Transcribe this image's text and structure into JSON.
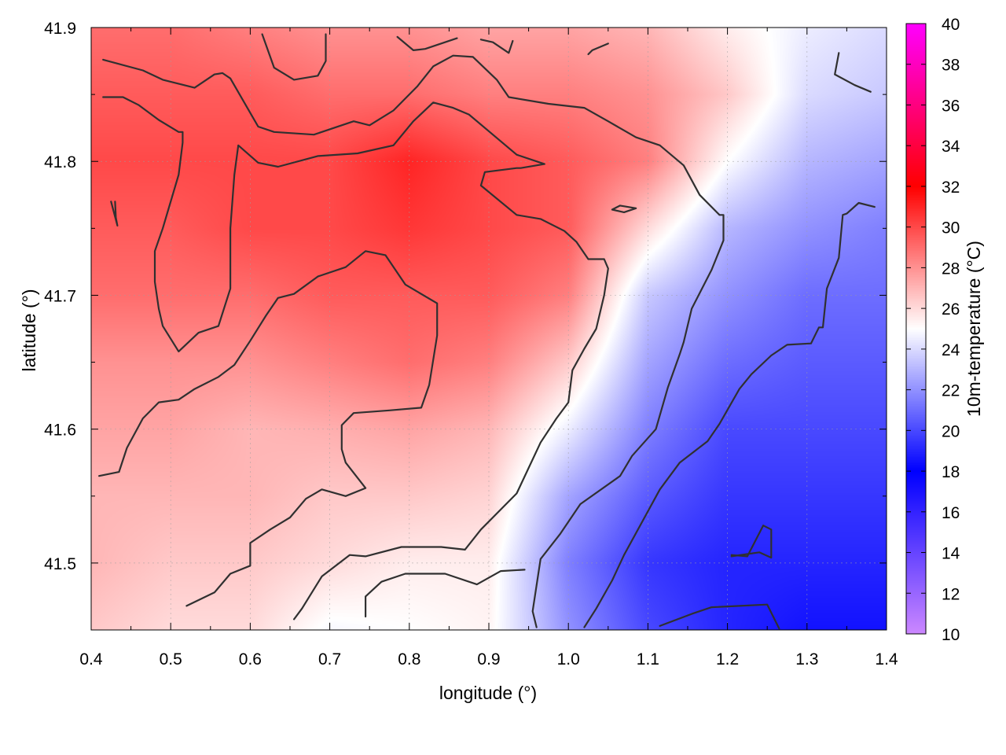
{
  "chart_data": {
    "type": "heatmap",
    "title": "",
    "xlabel": "longitude (°)",
    "ylabel": "latitude (°)",
    "colorbar_label": "10m-temperature (°C)",
    "xlim": [
      0.4,
      1.4
    ],
    "ylim": [
      41.45,
      41.9
    ],
    "xticks": [
      "0.4",
      "0.5",
      "0.6",
      "0.7",
      "0.8",
      "0.9",
      "1.0",
      "1.1",
      "1.2",
      "1.3",
      "1.4"
    ],
    "yticks": [
      "41.5",
      "41.6",
      "41.7",
      "41.8",
      "41.9"
    ],
    "colorbar_range": [
      10,
      40
    ],
    "colorbar_ticks": [
      "10",
      "12",
      "14",
      "16",
      "18",
      "20",
      "22",
      "24",
      "26",
      "28",
      "30",
      "32",
      "34",
      "36",
      "38",
      "40"
    ],
    "colormap_stops": [
      {
        "value": 10,
        "color": "#cc88ff"
      },
      {
        "value": 18,
        "color": "#0000ff"
      },
      {
        "value": 25,
        "color": "#ffffff"
      },
      {
        "value": 32,
        "color": "#ff0000"
      },
      {
        "value": 40,
        "color": "#ff00ff"
      }
    ],
    "grid": true,
    "colorbar_position": "right",
    "temperature_field": {
      "x": [
        0.4,
        0.5,
        0.6,
        0.7,
        0.8,
        0.9,
        1.0,
        1.1,
        1.2,
        1.3,
        1.4
      ],
      "y": [
        41.45,
        41.5,
        41.55,
        41.6,
        41.65,
        41.7,
        41.75,
        41.8,
        41.85,
        41.9
      ],
      "values": [
        [
          26.5,
          26.0,
          26.0,
          24.8,
          25.0,
          25.3,
          22.0,
          20.0,
          19.0,
          18.5,
          18.5
        ],
        [
          27.0,
          26.5,
          26.5,
          26.0,
          25.5,
          25.5,
          21.5,
          19.5,
          19.0,
          19.0,
          19.0
        ],
        [
          27.0,
          27.0,
          27.0,
          26.5,
          26.5,
          26.2,
          22.5,
          20.5,
          19.5,
          19.5,
          19.5
        ],
        [
          27.5,
          27.5,
          27.0,
          27.2,
          27.5,
          27.0,
          24.5,
          21.5,
          20.0,
          20.0,
          20.0
        ],
        [
          28.0,
          28.0,
          28.0,
          28.5,
          29.0,
          28.5,
          26.5,
          22.5,
          21.0,
          20.5,
          20.5
        ],
        [
          29.0,
          29.0,
          29.0,
          29.5,
          29.5,
          29.5,
          28.5,
          23.5,
          22.0,
          21.0,
          21.0
        ],
        [
          29.5,
          29.5,
          30.0,
          30.0,
          30.5,
          30.0,
          29.5,
          26.0,
          23.0,
          22.0,
          21.5
        ],
        [
          30.0,
          30.0,
          30.0,
          30.0,
          31.0,
          30.0,
          29.5,
          28.5,
          25.0,
          23.0,
          22.5
        ],
        [
          29.5,
          29.5,
          29.5,
          29.0,
          29.0,
          28.5,
          28.5,
          28.0,
          26.5,
          24.0,
          23.5
        ],
        [
          29.0,
          29.0,
          28.5,
          28.0,
          28.0,
          27.5,
          27.5,
          27.0,
          25.5,
          24.5,
          24.0
        ]
      ]
    },
    "contours": [
      [
        [
          0.415,
          41.876
        ],
        [
          0.465,
          41.868
        ],
        [
          0.49,
          41.861
        ],
        [
          0.53,
          41.855
        ],
        [
          0.555,
          41.865
        ],
        [
          0.565,
          41.866
        ],
        [
          0.575,
          41.862
        ],
        [
          0.61,
          41.826
        ],
        [
          0.63,
          41.822
        ],
        [
          0.68,
          41.82
        ],
        [
          0.73,
          41.83
        ],
        [
          0.75,
          41.827
        ],
        [
          0.78,
          41.838
        ],
        [
          0.81,
          41.856
        ],
        [
          0.83,
          41.871
        ],
        [
          0.855,
          41.879
        ],
        [
          0.88,
          41.878
        ],
        [
          0.91,
          41.861
        ],
        [
          0.925,
          41.848
        ],
        [
          0.975,
          41.843
        ],
        [
          1.02,
          41.84
        ],
        [
          1.05,
          41.83
        ],
        [
          1.085,
          41.818
        ],
        [
          1.115,
          41.812
        ],
        [
          1.145,
          41.797
        ],
        [
          1.165,
          41.775
        ],
        [
          1.19,
          41.76
        ],
        [
          1.195,
          41.76
        ],
        [
          1.195,
          41.741
        ],
        [
          1.18,
          41.719
        ],
        [
          1.155,
          41.69
        ],
        [
          1.145,
          41.665
        ],
        [
          1.14,
          41.656
        ],
        [
          1.125,
          41.631
        ],
        [
          1.11,
          41.6
        ],
        [
          1.08,
          41.58
        ],
        [
          1.065,
          41.565
        ],
        [
          1.015,
          41.544
        ],
        [
          0.99,
          41.522
        ],
        [
          0.965,
          41.503
        ],
        [
          0.955,
          41.464
        ],
        [
          0.96,
          41.452
        ]
      ],
      [
        [
          0.415,
          41.848
        ],
        [
          0.44,
          41.848
        ],
        [
          0.46,
          41.842
        ],
        [
          0.485,
          41.831
        ],
        [
          0.51,
          41.822
        ],
        [
          0.515,
          41.822
        ],
        [
          0.515,
          41.814
        ],
        [
          0.51,
          41.79
        ],
        [
          0.49,
          41.75
        ],
        [
          0.48,
          41.733
        ],
        [
          0.48,
          41.71
        ],
        [
          0.485,
          41.69
        ],
        [
          0.49,
          41.677
        ],
        [
          0.51,
          41.658
        ],
        [
          0.535,
          41.672
        ],
        [
          0.56,
          41.677
        ],
        [
          0.575,
          41.705
        ],
        [
          0.575,
          41.75
        ],
        [
          0.58,
          41.79
        ],
        [
          0.585,
          41.812
        ],
        [
          0.61,
          41.799
        ],
        [
          0.635,
          41.796
        ],
        [
          0.685,
          41.804
        ],
        [
          0.735,
          41.806
        ],
        [
          0.78,
          41.812
        ],
        [
          0.805,
          41.83
        ],
        [
          0.83,
          41.844
        ],
        [
          0.855,
          41.84
        ],
        [
          0.875,
          41.835
        ],
        [
          0.905,
          41.82
        ],
        [
          0.935,
          41.805
        ],
        [
          0.97,
          41.798
        ],
        [
          0.94,
          41.795
        ],
        [
          0.935,
          41.795
        ],
        [
          0.895,
          41.792
        ],
        [
          0.89,
          41.782
        ],
        [
          0.935,
          41.76
        ],
        [
          0.965,
          41.757
        ],
        [
          0.995,
          41.748
        ],
        [
          1.01,
          41.74
        ],
        [
          1.025,
          41.727
        ],
        [
          1.03,
          41.727
        ],
        [
          1.045,
          41.727
        ],
        [
          1.05,
          41.72
        ],
        [
          1.045,
          41.7
        ],
        [
          1.035,
          41.675
        ],
        [
          1.02,
          41.66
        ],
        [
          1.005,
          41.644
        ],
        [
          1.0,
          41.62
        ],
        [
          0.985,
          41.608
        ],
        [
          0.965,
          41.59
        ],
        [
          0.935,
          41.552
        ],
        [
          0.89,
          41.525
        ],
        [
          0.87,
          41.51
        ],
        [
          0.84,
          41.512
        ],
        [
          0.79,
          41.512
        ],
        [
          0.745,
          41.505
        ],
        [
          0.725,
          41.506
        ],
        [
          0.69,
          41.49
        ],
        [
          0.665,
          41.466
        ],
        [
          0.655,
          41.458
        ]
      ],
      [
        [
          0.425,
          41.77
        ],
        [
          0.433,
          41.752
        ],
        [
          0.431,
          41.758
        ],
        [
          0.43,
          41.77
        ]
      ],
      [
        [
          0.41,
          41.565
        ],
        [
          0.435,
          41.568
        ],
        [
          0.445,
          41.586
        ],
        [
          0.465,
          41.608
        ],
        [
          0.485,
          41.62
        ],
        [
          0.51,
          41.622
        ],
        [
          0.53,
          41.63
        ],
        [
          0.56,
          41.639
        ],
        [
          0.58,
          41.648
        ],
        [
          0.6,
          41.666
        ],
        [
          0.62,
          41.685
        ],
        [
          0.635,
          41.698
        ],
        [
          0.655,
          41.701
        ],
        [
          0.685,
          41.714
        ],
        [
          0.72,
          41.721
        ],
        [
          0.745,
          41.733
        ],
        [
          0.77,
          41.73
        ],
        [
          0.795,
          41.708
        ],
        [
          0.835,
          41.694
        ],
        [
          0.835,
          41.67
        ],
        [
          0.825,
          41.633
        ],
        [
          0.815,
          41.616
        ],
        [
          0.775,
          41.614
        ],
        [
          0.73,
          41.612
        ],
        [
          0.715,
          41.603
        ],
        [
          0.715,
          41.585
        ],
        [
          0.72,
          41.575
        ],
        [
          0.745,
          41.556
        ],
        [
          0.72,
          41.55
        ],
        [
          0.69,
          41.555
        ],
        [
          0.67,
          41.548
        ],
        [
          0.65,
          41.534
        ],
        [
          0.625,
          41.525
        ],
        [
          0.6,
          41.515
        ],
        [
          0.6,
          41.498
        ],
        [
          0.575,
          41.492
        ],
        [
          0.555,
          41.478
        ],
        [
          0.52,
          41.468
        ]
      ],
      [
        [
          0.745,
          41.46
        ],
        [
          0.745,
          41.475
        ],
        [
          0.765,
          41.486
        ],
        [
          0.795,
          41.492
        ],
        [
          0.845,
          41.492
        ],
        [
          0.885,
          41.484
        ],
        [
          0.915,
          41.494
        ],
        [
          0.945,
          41.495
        ]
      ],
      [
        [
          1.02,
          41.452
        ],
        [
          1.035,
          41.466
        ],
        [
          1.055,
          41.487
        ],
        [
          1.07,
          41.506
        ],
        [
          1.115,
          41.555
        ],
        [
          1.14,
          41.575
        ],
        [
          1.175,
          41.591
        ],
        [
          1.19,
          41.604
        ],
        [
          1.215,
          41.63
        ],
        [
          1.23,
          41.641
        ],
        [
          1.255,
          41.655
        ],
        [
          1.275,
          41.663
        ],
        [
          1.305,
          41.664
        ],
        [
          1.315,
          41.676
        ],
        [
          1.32,
          41.676
        ],
        [
          1.325,
          41.705
        ],
        [
          1.34,
          41.728
        ],
        [
          1.345,
          41.76
        ],
        [
          1.35,
          41.761
        ],
        [
          1.365,
          41.769
        ],
        [
          1.385,
          41.766
        ]
      ],
      [
        [
          1.205,
          41.505
        ],
        [
          1.24,
          41.508
        ],
        [
          1.255,
          41.504
        ],
        [
          1.255,
          41.512
        ],
        [
          1.255,
          41.525
        ],
        [
          1.245,
          41.528
        ],
        [
          1.225,
          41.505
        ],
        [
          1.205,
          41.506
        ]
      ],
      [
        [
          1.115,
          41.453
        ],
        [
          1.155,
          41.462
        ],
        [
          1.18,
          41.467
        ],
        [
          1.25,
          41.469
        ],
        [
          1.265,
          41.451
        ]
      ],
      [
        [
          1.055,
          41.764
        ],
        [
          1.065,
          41.767
        ],
        [
          1.085,
          41.765
        ],
        [
          1.07,
          41.762
        ],
        [
          1.055,
          41.764
        ]
      ],
      [
        [
          0.615,
          41.895
        ],
        [
          0.63,
          41.87
        ],
        [
          0.655,
          41.861
        ],
        [
          0.685,
          41.864
        ],
        [
          0.695,
          41.875
        ],
        [
          0.695,
          41.895
        ]
      ],
      [
        [
          0.785,
          41.893
        ],
        [
          0.805,
          41.883
        ],
        [
          0.82,
          41.884
        ],
        [
          0.86,
          41.892
        ]
      ],
      [
        [
          0.89,
          41.891
        ],
        [
          0.905,
          41.889
        ],
        [
          0.925,
          41.881
        ],
        [
          0.93,
          41.89
        ]
      ],
      [
        [
          1.025,
          41.88
        ],
        [
          1.03,
          41.883
        ],
        [
          1.05,
          41.888
        ]
      ],
      [
        [
          1.34,
          41.881
        ],
        [
          1.335,
          41.865
        ],
        [
          1.36,
          41.857
        ],
        [
          1.38,
          41.852
        ]
      ]
    ]
  }
}
